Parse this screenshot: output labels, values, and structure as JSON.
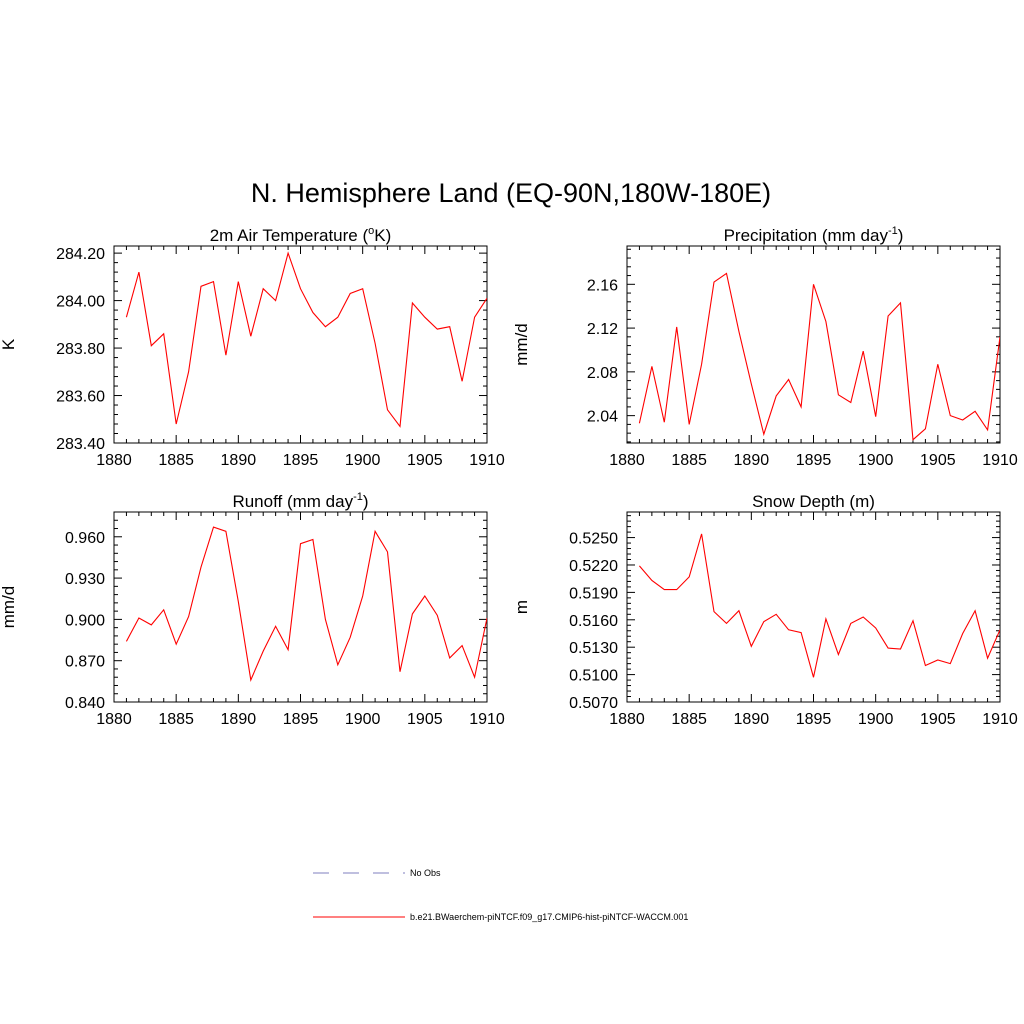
{
  "title": "N. Hemisphere Land (EQ-90N,180W-180E)",
  "colors": {
    "model_line": "#ff0000",
    "obs_line": "#9999cc",
    "frame": "#000000"
  },
  "legend": {
    "obs_label": "No Obs",
    "model_label": "b.e21.BWaerchem-piNTCF.f09_g17.CMIP6-hist-piNTCF-WACCM.001"
  },
  "chart_data": [
    {
      "type": "line",
      "title": "2m Air Temperature (",
      "title_sup": "o",
      "title_after": "K)",
      "ylabel": "K",
      "xlim": [
        1880,
        1910
      ],
      "ylim": [
        283.4,
        284.23
      ],
      "xticks": [
        1880,
        1885,
        1890,
        1895,
        1900,
        1905,
        1910
      ],
      "yticks": [
        283.4,
        283.6,
        283.8,
        284.0,
        284.2
      ],
      "ytick_labels": [
        "283.40",
        "283.60",
        "283.80",
        "284.00",
        "284.20"
      ],
      "series": [
        {
          "x": [
            1881,
            1882,
            1883,
            1884,
            1885,
            1886,
            1887,
            1888,
            1889,
            1890,
            1891,
            1892,
            1893,
            1894,
            1895,
            1896,
            1897,
            1898,
            1899,
            1900,
            1901,
            1902,
            1903,
            1904,
            1905,
            1906,
            1907,
            1908,
            1909,
            1910
          ],
          "values": [
            283.93,
            284.12,
            283.81,
            283.86,
            283.48,
            283.7,
            284.06,
            284.08,
            283.77,
            284.08,
            283.85,
            284.05,
            284.0,
            284.2,
            284.05,
            283.95,
            283.89,
            283.93,
            284.03,
            284.05,
            283.82,
            283.54,
            283.47,
            283.99,
            283.93,
            283.88,
            283.89,
            283.66,
            283.93,
            284.01
          ]
        }
      ]
    },
    {
      "type": "line",
      "title": "Precipitation (mm day",
      "title_sup": "-1",
      "title_after": ")",
      "ylabel": "mm/d",
      "xlim": [
        1880,
        1910
      ],
      "ylim": [
        2.015,
        2.195
      ],
      "xticks": [
        1880,
        1885,
        1890,
        1895,
        1900,
        1905,
        1910
      ],
      "yticks": [
        2.04,
        2.08,
        2.12,
        2.16
      ],
      "ytick_labels": [
        "2.04",
        "2.08",
        "2.12",
        "2.16"
      ],
      "series": [
        {
          "x": [
            1881,
            1882,
            1883,
            1884,
            1885,
            1886,
            1887,
            1888,
            1889,
            1890,
            1891,
            1892,
            1893,
            1894,
            1895,
            1896,
            1897,
            1898,
            1899,
            1900,
            1901,
            1902,
            1903,
            1904,
            1905,
            1906,
            1907,
            1908,
            1909,
            1910
          ],
          "values": [
            2.033,
            2.085,
            2.034,
            2.121,
            2.032,
            2.087,
            2.162,
            2.17,
            2.117,
            2.069,
            2.023,
            2.058,
            2.073,
            2.048,
            2.16,
            2.126,
            2.059,
            2.052,
            2.099,
            2.039,
            2.131,
            2.143,
            2.018,
            2.028,
            2.087,
            2.04,
            2.036,
            2.044,
            2.027,
            2.112
          ]
        }
      ]
    },
    {
      "type": "line",
      "title": "Runoff (mm day",
      "title_sup": "-1",
      "title_after": ")",
      "ylabel": "mm/d",
      "xlim": [
        1880,
        1910
      ],
      "ylim": [
        0.84,
        0.978
      ],
      "xticks": [
        1880,
        1885,
        1890,
        1895,
        1900,
        1905,
        1910
      ],
      "yticks": [
        0.84,
        0.87,
        0.9,
        0.93,
        0.96
      ],
      "ytick_labels": [
        "0.840",
        "0.870",
        "0.900",
        "0.930",
        "0.960"
      ],
      "series": [
        {
          "x": [
            1881,
            1882,
            1883,
            1884,
            1885,
            1886,
            1887,
            1888,
            1889,
            1890,
            1891,
            1892,
            1893,
            1894,
            1895,
            1896,
            1897,
            1898,
            1899,
            1900,
            1901,
            1902,
            1903,
            1904,
            1905,
            1906,
            1907,
            1908,
            1909,
            1910
          ],
          "values": [
            0.884,
            0.901,
            0.896,
            0.907,
            0.882,
            0.902,
            0.938,
            0.967,
            0.964,
            0.913,
            0.856,
            0.877,
            0.895,
            0.878,
            0.955,
            0.958,
            0.9,
            0.867,
            0.887,
            0.917,
            0.964,
            0.949,
            0.862,
            0.904,
            0.917,
            0.903,
            0.872,
            0.881,
            0.858,
            0.901
          ]
        }
      ]
    },
    {
      "type": "line",
      "title": "Snow Depth (m)",
      "title_sup": "",
      "title_after": "",
      "ylabel": "m",
      "xlim": [
        1880,
        1910
      ],
      "ylim": [
        0.507,
        0.5278
      ],
      "xticks": [
        1880,
        1885,
        1890,
        1895,
        1900,
        1905,
        1910
      ],
      "yticks": [
        0.507,
        0.51,
        0.513,
        0.516,
        0.519,
        0.522,
        0.525
      ],
      "ytick_labels": [
        "0.5070",
        "0.5100",
        "0.5130",
        "0.5160",
        "0.5190",
        "0.5220",
        "0.5250"
      ],
      "series": [
        {
          "x": [
            1881,
            1882,
            1883,
            1884,
            1885,
            1886,
            1887,
            1888,
            1889,
            1890,
            1891,
            1892,
            1893,
            1894,
            1895,
            1896,
            1897,
            1898,
            1899,
            1900,
            1901,
            1902,
            1903,
            1904,
            1905,
            1906,
            1907,
            1908,
            1909,
            1910
          ],
          "values": [
            0.5219,
            0.5203,
            0.5193,
            0.5193,
            0.5207,
            0.5254,
            0.5169,
            0.5156,
            0.517,
            0.5131,
            0.5158,
            0.5166,
            0.5149,
            0.5146,
            0.5097,
            0.5161,
            0.5122,
            0.5156,
            0.5163,
            0.5151,
            0.5129,
            0.5128,
            0.5159,
            0.511,
            0.5116,
            0.5112,
            0.5145,
            0.517,
            0.5118,
            0.5149
          ]
        }
      ]
    }
  ]
}
